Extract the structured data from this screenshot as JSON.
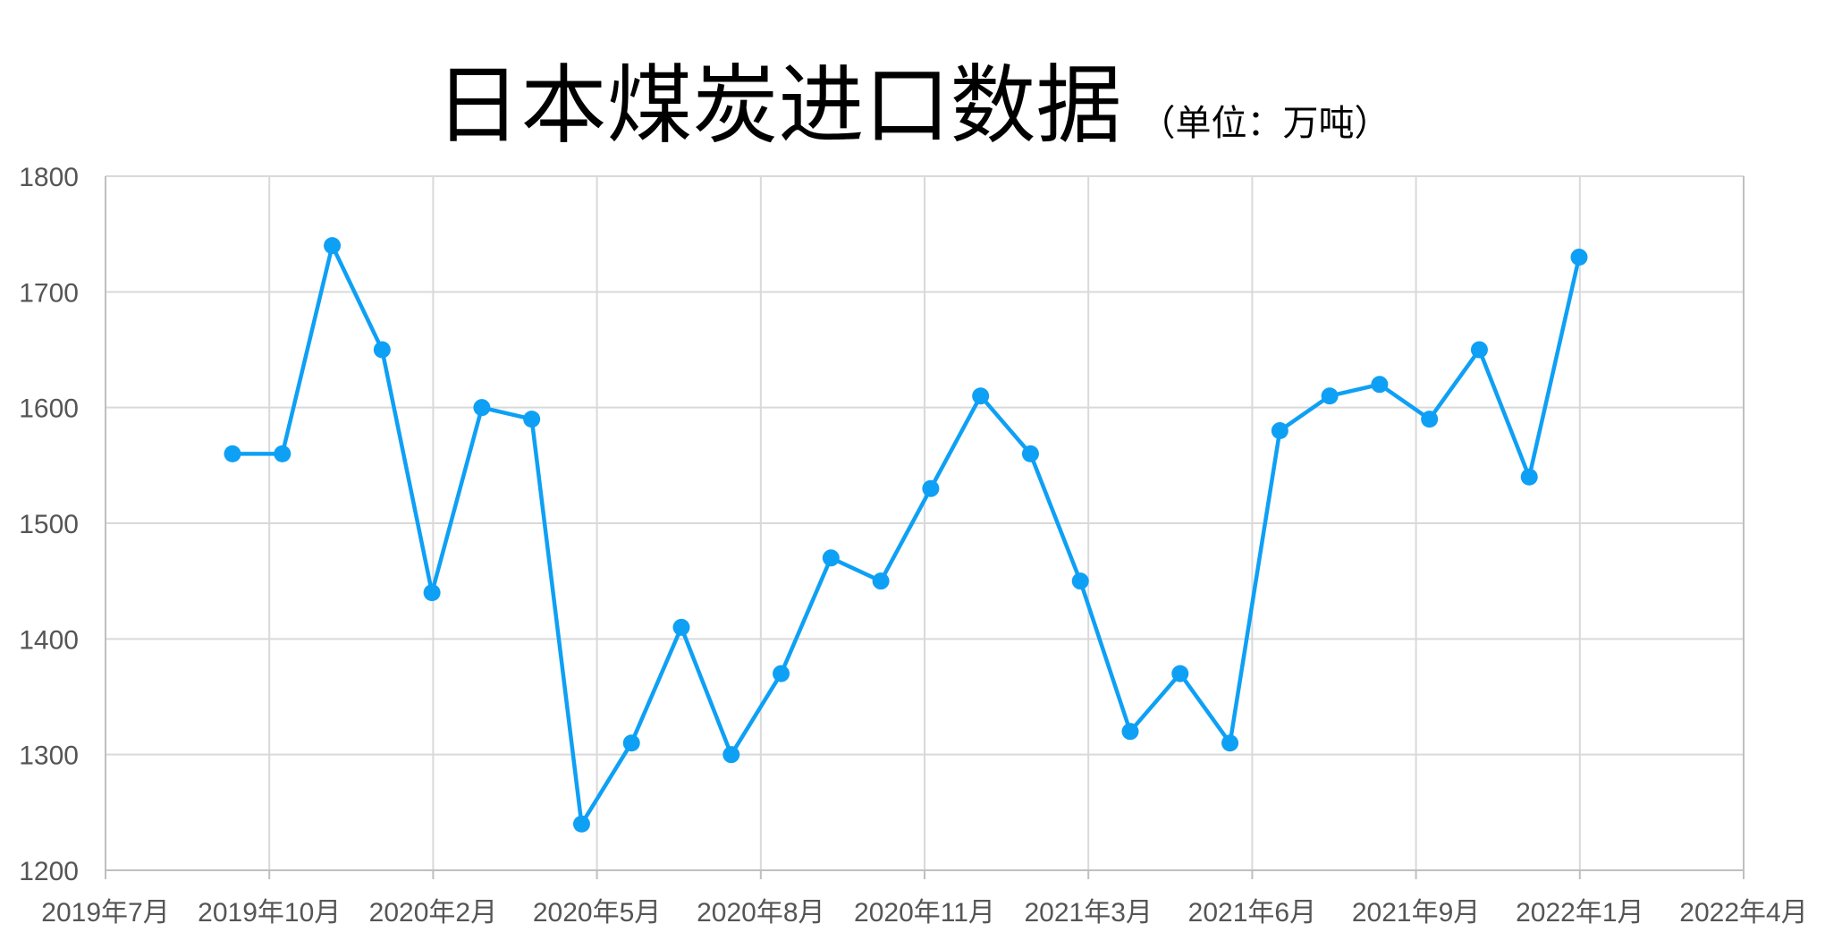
{
  "chart_data": {
    "type": "line",
    "title": "日本煤炭进口数据",
    "subtitle": "（单位：万吨）",
    "xlabel": "",
    "ylabel": "",
    "x_tick_labels": [
      "2019年7月",
      "2019年10月",
      "2020年2月",
      "2020年5月",
      "2020年8月",
      "2020年11月",
      "2021年3月",
      "2021年6月",
      "2021年9月",
      "2022年1月",
      "2022年4月"
    ],
    "y_ticks": [
      1200,
      1300,
      1400,
      1500,
      1600,
      1700,
      1800
    ],
    "ylim": [
      1200,
      1800
    ],
    "grid": true,
    "series": [
      {
        "values": [
          1560,
          1560,
          1740,
          1650,
          1440,
          1600,
          1590,
          1240,
          1310,
          1410,
          1300,
          1370,
          1470,
          1450,
          1530,
          1610,
          1560,
          1450,
          1320,
          1370,
          1310,
          1580,
          1610,
          1620,
          1590,
          1650,
          1540,
          1730
        ]
      }
    ],
    "colors": {
      "line": "#0ea0f5",
      "grid": "#d9d9d9",
      "axis": "#bfbfbf",
      "tick_text": "#555555"
    }
  }
}
